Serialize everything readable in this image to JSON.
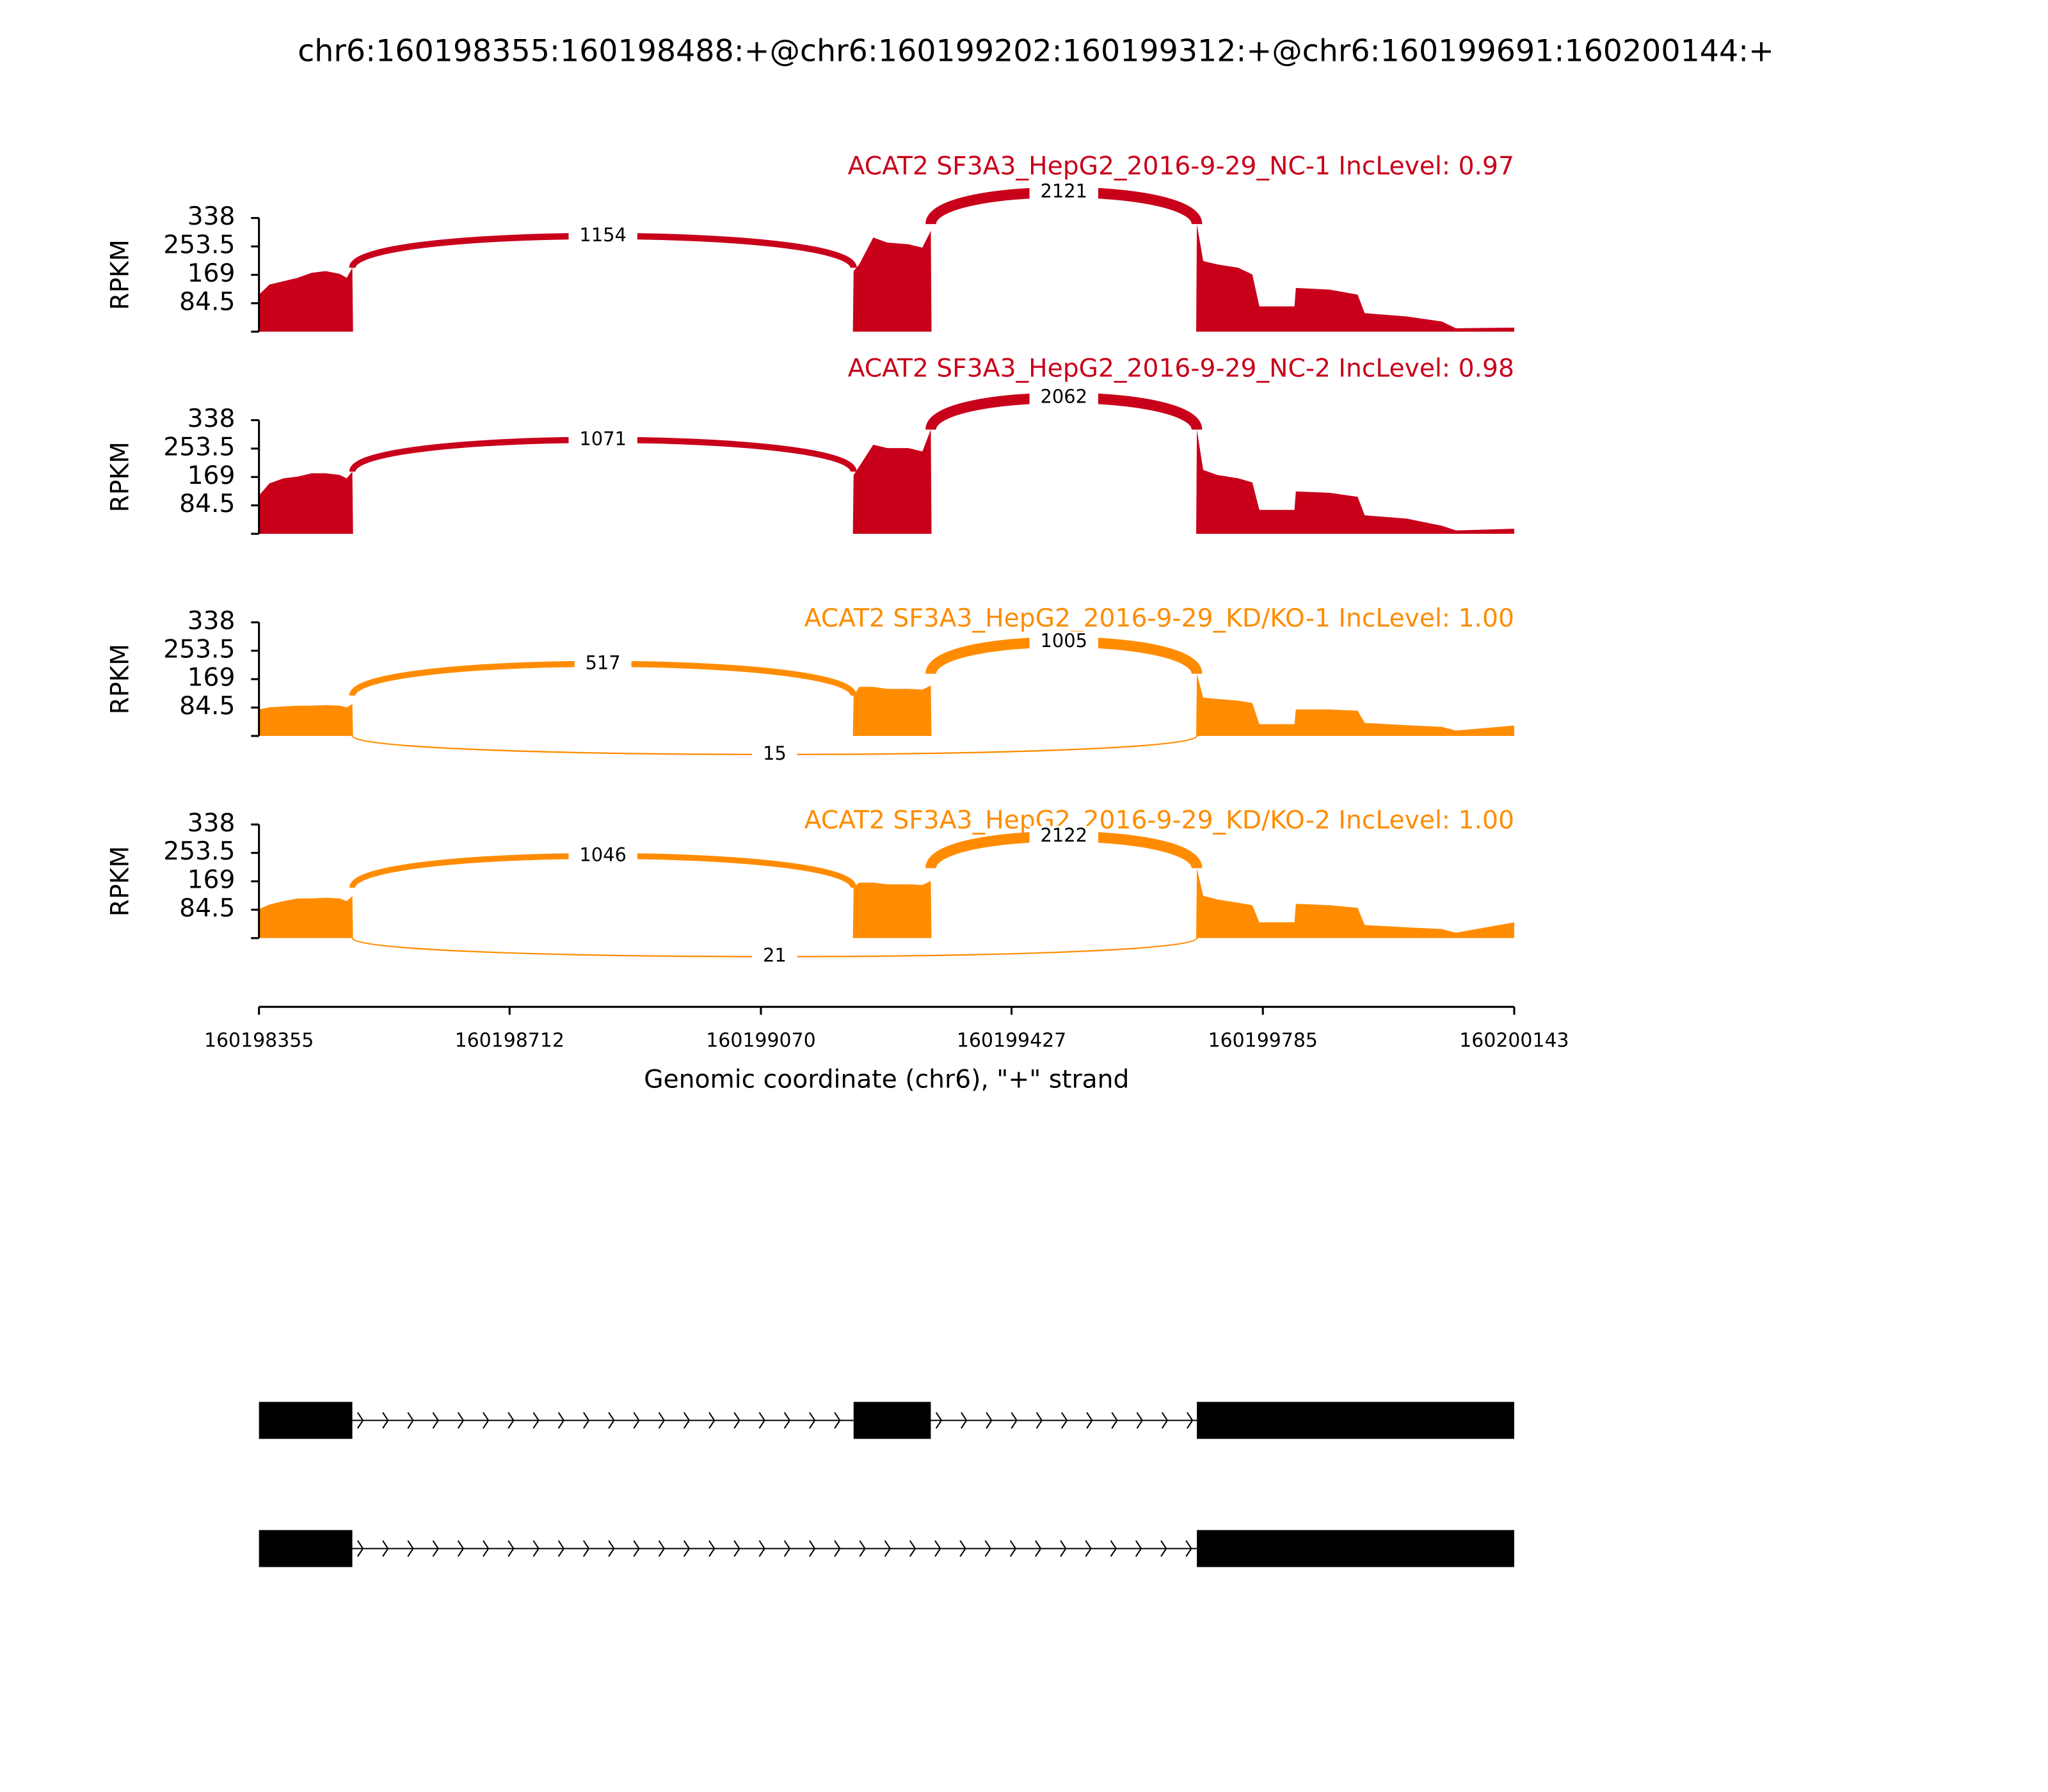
{
  "title": "chr6:160198355:160198488:+@chr6:160199202:160199312:+@chr6:160199691:160200144:+",
  "chart_data": [
    {
      "type": "area",
      "title": "ACAT2 SF3A3_HepG2_2016-9-29_NC-1 IncLevel: 0.97",
      "color": "#c8001a",
      "ylabel": "RPKM",
      "ylim": [
        0,
        338
      ],
      "yticks": [
        84.5,
        169,
        253.5,
        338
      ],
      "xlim": [
        160198355,
        160200143
      ],
      "x": [
        160198355,
        160198370,
        160198390,
        160198410,
        160198430,
        160198450,
        160198470,
        160198480,
        160198488,
        160198489,
        160199201,
        160199202,
        160199210,
        160199230,
        160199250,
        160199280,
        160199300,
        160199312,
        160199313,
        160199690,
        160199691,
        160199700,
        160199720,
        160199750,
        160199770,
        160199780,
        160199830,
        160199832,
        160199880,
        160199920,
        160199930,
        160199990,
        160200040,
        160200060,
        160200143
      ],
      "values": [
        110,
        140,
        150,
        160,
        175,
        180,
        172,
        160,
        190,
        0,
        0,
        180,
        200,
        280,
        265,
        260,
        250,
        300,
        0,
        0,
        320,
        210,
        200,
        190,
        170,
        75,
        75,
        130,
        125,
        110,
        55,
        45,
        30,
        10,
        12
      ],
      "junctions": [
        {
          "from": 160198488,
          "to": 160199202,
          "count": 1154,
          "side": "above"
        },
        {
          "from": 160199312,
          "to": 160199691,
          "count": 2121,
          "side": "above"
        }
      ]
    },
    {
      "type": "area",
      "title": "ACAT2 SF3A3_HepG2_2016-9-29_NC-2 IncLevel: 0.98",
      "color": "#c8001a",
      "ylabel": "RPKM",
      "ylim": [
        0,
        338
      ],
      "yticks": [
        84.5,
        169,
        253.5,
        338
      ],
      "xlim": [
        160198355,
        160200143
      ],
      "x": [
        160198355,
        160198370,
        160198390,
        160198410,
        160198430,
        160198450,
        160198470,
        160198480,
        160198488,
        160198489,
        160199201,
        160199202,
        160199210,
        160199230,
        160199250,
        160199280,
        160199300,
        160199312,
        160199313,
        160199690,
        160199691,
        160199700,
        160199720,
        160199750,
        160199770,
        160199780,
        160199830,
        160199832,
        160199880,
        160199920,
        160199930,
        160199990,
        160200040,
        160200060,
        160200143
      ],
      "values": [
        114,
        150,
        165,
        170,
        180,
        180,
        175,
        165,
        185,
        0,
        0,
        175,
        200,
        265,
        255,
        255,
        245,
        310,
        0,
        0,
        310,
        190,
        175,
        165,
        153,
        71,
        71,
        126,
        122,
        110,
        55,
        45,
        24,
        10,
        15
      ],
      "junctions": [
        {
          "from": 160198488,
          "to": 160199202,
          "count": 1071,
          "side": "above"
        },
        {
          "from": 160199312,
          "to": 160199691,
          "count": 2062,
          "side": "above"
        }
      ]
    },
    {
      "type": "area",
      "title": "ACAT2 SF3A3_HepG2_2016-9-29_KD/KO-1 IncLevel: 1.00",
      "color": "#ff8c00",
      "ylabel": "RPKM",
      "ylim": [
        0,
        338
      ],
      "yticks": [
        84.5,
        169,
        253.5,
        338
      ],
      "xlim": [
        160198355,
        160200143
      ],
      "x": [
        160198355,
        160198370,
        160198390,
        160198410,
        160198430,
        160198450,
        160198470,
        160198480,
        160198488,
        160198489,
        160199201,
        160199202,
        160199210,
        160199230,
        160199250,
        160199280,
        160199300,
        160199312,
        160199313,
        160199690,
        160199691,
        160199700,
        160199720,
        160199750,
        160199770,
        160199780,
        160199830,
        160199832,
        160199880,
        160199920,
        160199930,
        160199990,
        160200040,
        160200060,
        160200143
      ],
      "values": [
        79,
        85,
        88,
        90,
        90,
        92,
        90,
        85,
        95,
        0,
        0,
        120,
        146,
        146,
        140,
        140,
        138,
        150,
        0,
        0,
        185,
        114,
        110,
        105,
        98,
        35,
        35,
        79,
        79,
        75,
        39,
        32,
        27,
        16,
        31
      ],
      "junctions": [
        {
          "from": 160198488,
          "to": 160199202,
          "count": 517,
          "side": "above"
        },
        {
          "from": 160199312,
          "to": 160199691,
          "count": 1005,
          "side": "above"
        },
        {
          "from": 160198488,
          "to": 160199691,
          "count": 15,
          "side": "below"
        }
      ]
    },
    {
      "type": "area",
      "title": "ACAT2 SF3A3_HepG2_2016-9-29_KD/KO-2 IncLevel: 1.00",
      "color": "#ff8c00",
      "ylabel": "RPKM",
      "ylim": [
        0,
        338
      ],
      "yticks": [
        84.5,
        169,
        253.5,
        338
      ],
      "xlim": [
        160198355,
        160200143
      ],
      "xticks": [
        160198355,
        160198712,
        160199070,
        160199427,
        160199785,
        160200143
      ],
      "xlabel": "Genomic coordinate (chr6), \"+\" strand",
      "x": [
        160198355,
        160198370,
        160198390,
        160198410,
        160198430,
        160198450,
        160198470,
        160198480,
        160198488,
        160198489,
        160199201,
        160199202,
        160199210,
        160199230,
        160199250,
        160199280,
        160199300,
        160199312,
        160199313,
        160199690,
        160199691,
        160199700,
        160199720,
        160199750,
        160199770,
        160199780,
        160199830,
        160199832,
        160199880,
        160199920,
        160199930,
        160199990,
        160200040,
        160200060,
        160200143
      ],
      "values": [
        86,
        100,
        110,
        118,
        118,
        120,
        118,
        110,
        125,
        0,
        0,
        150,
        165,
        165,
        160,
        160,
        158,
        170,
        0,
        0,
        208,
        126,
        115,
        105,
        98,
        47,
        47,
        102,
        98,
        90,
        39,
        32,
        27,
        16,
        47
      ],
      "junctions": [
        {
          "from": 160198488,
          "to": 160199202,
          "count": 1046,
          "side": "above"
        },
        {
          "from": 160199312,
          "to": 160199691,
          "count": 2122,
          "side": "above"
        },
        {
          "from": 160198488,
          "to": 160199691,
          "count": 21,
          "side": "below"
        }
      ]
    }
  ],
  "gene_model": {
    "transcripts": [
      {
        "exons": [
          [
            160198355,
            160198488
          ],
          [
            160199202,
            160199312
          ],
          [
            160199691,
            160200143
          ]
        ]
      },
      {
        "exons": [
          [
            160198355,
            160198488
          ],
          [
            160199691,
            160200143
          ]
        ]
      }
    ]
  }
}
